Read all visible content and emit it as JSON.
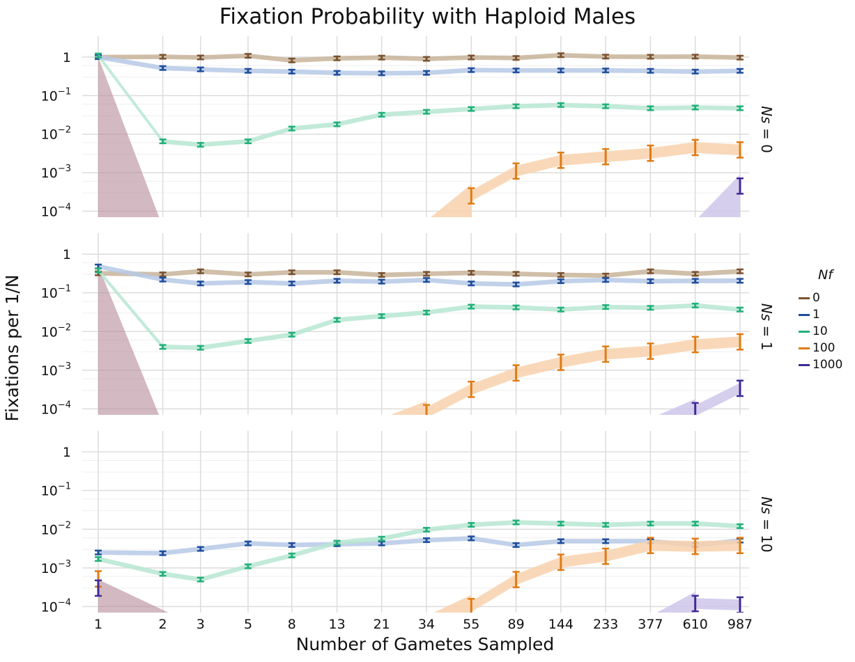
{
  "chart_data": {
    "type": "line",
    "title": "Fixation Probability with Haploid Males",
    "xlabel": "Number of Gametes Sampled",
    "ylabel": "Fixations per 1/N",
    "x_scale": "log",
    "y_scale": "log",
    "x": [
      1,
      2,
      3,
      5,
      8,
      13,
      21,
      34,
      55,
      89,
      144,
      233,
      377,
      610,
      987
    ],
    "x_tick_labels": [
      "1",
      "2",
      "3",
      "5",
      "8",
      "13",
      "21",
      "34",
      "55",
      "89",
      "144",
      "233",
      "377",
      "610",
      "987"
    ],
    "y_tick_labels": [
      {
        "base": "1",
        "exp": ""
      },
      {
        "base": "10",
        "exp": "−1"
      },
      {
        "base": "10",
        "exp": "−2"
      },
      {
        "base": "10",
        "exp": "−3"
      },
      {
        "base": "10",
        "exp": "−4"
      }
    ],
    "ylim": [
      7e-05,
      2.5
    ],
    "grid": true,
    "legend": {
      "title": "Nf",
      "placement": "right",
      "entries": [
        {
          "label": "0",
          "color": "#7a5230"
        },
        {
          "label": "1",
          "color": "#1f4e9c"
        },
        {
          "label": "10",
          "color": "#22b07a"
        },
        {
          "label": "100",
          "color": "#e07b12"
        },
        {
          "label": "1000",
          "color": "#3f2a96"
        }
      ]
    },
    "band_colors": {
      "0": "#c8b49a",
      "1": "#b7c9e6",
      "10": "#b7e6d2",
      "100": "#f8d1ad",
      "1000": "#cfc6ea",
      "drop": "#b58a98"
    },
    "panels": [
      {
        "label": "Ns = 0",
        "series": [
          {
            "name": "0",
            "values": [
              1.0,
              1.02,
              0.98,
              1.08,
              0.82,
              0.93,
              0.97,
              0.9,
              0.98,
              0.95,
              1.12,
              1.03,
              1.02,
              1.03,
              0.97
            ]
          },
          {
            "name": "1",
            "values": [
              1.0,
              0.52,
              0.48,
              0.44,
              0.42,
              0.39,
              0.38,
              0.39,
              0.46,
              0.45,
              0.45,
              0.45,
              0.44,
              0.42,
              0.44
            ]
          },
          {
            "name": "10",
            "values": [
              1.1,
              0.0065,
              0.0053,
              0.0065,
              0.014,
              0.018,
              0.032,
              0.038,
              0.045,
              0.053,
              0.057,
              0.053,
              0.047,
              0.049,
              0.047
            ]
          },
          {
            "name": "100",
            "values": [
              null,
              null,
              null,
              null,
              null,
              null,
              null,
              null,
              0.00025,
              0.0011,
              0.0021,
              0.0026,
              0.0032,
              0.0045,
              0.0039
            ]
          },
          {
            "name": "1000",
            "values": [
              null,
              null,
              null,
              null,
              null,
              null,
              null,
              null,
              null,
              null,
              null,
              null,
              null,
              null,
              0.00045
            ]
          }
        ]
      },
      {
        "label": "Ns = 1",
        "series": [
          {
            "name": "0",
            "values": [
              0.32,
              0.3,
              0.36,
              0.3,
              0.34,
              0.34,
              0.29,
              0.31,
              0.33,
              0.31,
              0.29,
              0.28,
              0.36,
              0.31,
              0.36
            ]
          },
          {
            "name": "1",
            "values": [
              0.48,
              0.22,
              0.175,
              0.19,
              0.175,
              0.205,
              0.195,
              0.215,
              0.175,
              0.165,
              0.2,
              0.215,
              0.2,
              0.205,
              0.205
            ]
          },
          {
            "name": "10",
            "values": [
              0.38,
              0.004,
              0.0038,
              0.0057,
              0.0083,
              0.02,
              0.025,
              0.031,
              0.044,
              0.042,
              0.037,
              0.043,
              0.041,
              0.047,
              0.037
            ]
          },
          {
            "name": "100",
            "values": [
              null,
              null,
              null,
              null,
              null,
              null,
              null,
              8e-05,
              0.00032,
              0.00085,
              0.0016,
              0.0026,
              0.0031,
              0.0046,
              0.0054
            ]
          },
          {
            "name": "1000",
            "values": [
              null,
              null,
              null,
              null,
              null,
              null,
              null,
              null,
              null,
              null,
              null,
              null,
              null,
              9e-05,
              0.00034
            ]
          }
        ]
      },
      {
        "label": "Ns = 10",
        "series": [
          {
            "name": "1",
            "values": [
              0.0025,
              0.0024,
              0.0031,
              0.0043,
              0.0039,
              0.0041,
              0.0043,
              0.0052,
              0.0058,
              0.0039,
              0.0049,
              0.0049,
              0.0049,
              0.0039,
              0.0051
            ]
          },
          {
            "name": "10",
            "values": [
              0.0017,
              0.0007,
              0.0005,
              0.0011,
              0.0021,
              0.0045,
              0.0057,
              0.0097,
              0.013,
              0.015,
              0.014,
              0.013,
              0.014,
              0.014,
              0.012
            ]
          },
          {
            "name": "100",
            "values": [
              0.00052,
              null,
              null,
              null,
              null,
              null,
              null,
              null,
              0.0001,
              0.0005,
              0.0014,
              0.002,
              0.0038,
              0.0036,
              0.0038
            ]
          },
          {
            "name": "1000",
            "values": [
              0.0003,
              null,
              null,
              null,
              null,
              null,
              null,
              null,
              null,
              null,
              null,
              null,
              null,
              0.00012,
              0.00011
            ]
          }
        ]
      }
    ]
  }
}
